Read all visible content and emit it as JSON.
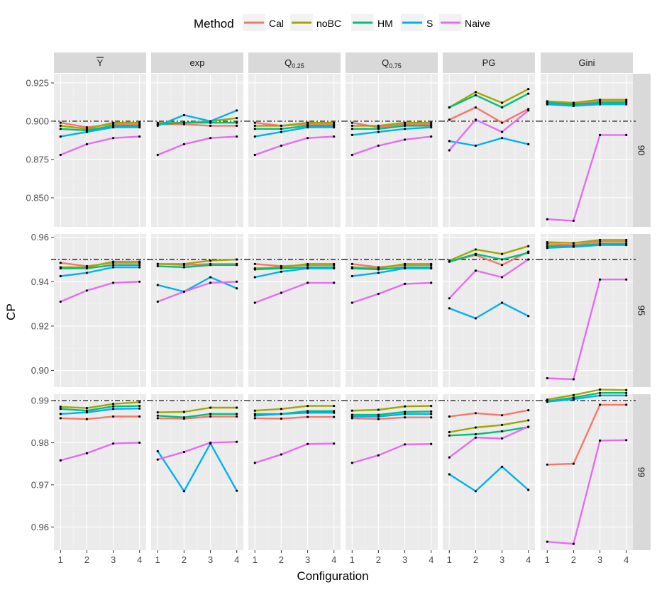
{
  "chart_data": {
    "type": "line",
    "xlabel": "Configuration",
    "ylabel": "CP",
    "x": [
      1,
      2,
      3,
      4
    ],
    "legend": {
      "title": "Method",
      "position": "top",
      "entries": [
        {
          "name": "Cal",
          "color": "#F8766D"
        },
        {
          "name": "noBC",
          "color": "#A3A500"
        },
        {
          "name": "HM",
          "color": "#00BF7D"
        },
        {
          "name": "S",
          "color": "#00B0F6"
        },
        {
          "name": "Naive",
          "color": "#E76BF3"
        }
      ]
    },
    "columns": [
      {
        "label": "Y",
        "overline": true
      },
      {
        "label": "exp"
      },
      {
        "label": "Q",
        "sub": "0.25"
      },
      {
        "label": "Q",
        "sub": "0.75"
      },
      {
        "label": "PG"
      },
      {
        "label": "Gini"
      }
    ],
    "rows": [
      {
        "label": "90",
        "nominal": 0.9,
        "ylim": [
          0.831,
          0.931
        ],
        "yticks": [
          0.85,
          0.875,
          0.9,
          0.925
        ],
        "ytick_labels": [
          "0.850",
          "0.875",
          "0.900",
          "0.925"
        ],
        "panels": [
          {
            "Cal": [
              0.899,
              0.896,
              0.898,
              0.898
            ],
            "noBC": [
              0.897,
              0.895,
              0.899,
              0.899
            ],
            "HM": [
              0.895,
              0.894,
              0.897,
              0.897
            ],
            "S": [
              0.89,
              0.893,
              0.896,
              0.896
            ],
            "Naive": [
              0.878,
              0.885,
              0.889,
              0.89
            ]
          },
          {
            "Cal": [
              0.898,
              0.898,
              0.897,
              0.897
            ],
            "noBC": [
              0.899,
              0.899,
              0.9,
              0.902
            ],
            "HM": [
              0.898,
              0.899,
              0.899,
              0.899
            ],
            "S": [
              0.897,
              0.904,
              0.9,
              0.907
            ],
            "Naive": [
              0.878,
              0.885,
              0.889,
              0.89
            ]
          },
          {
            "Cal": [
              0.899,
              0.897,
              0.898,
              0.898
            ],
            "noBC": [
              0.897,
              0.897,
              0.899,
              0.899
            ],
            "HM": [
              0.895,
              0.895,
              0.897,
              0.897
            ],
            "S": [
              0.89,
              0.893,
              0.896,
              0.896
            ],
            "Naive": [
              0.878,
              0.884,
              0.889,
              0.89
            ]
          },
          {
            "Cal": [
              0.899,
              0.896,
              0.898,
              0.898
            ],
            "noBC": [
              0.897,
              0.897,
              0.899,
              0.899
            ],
            "HM": [
              0.895,
              0.895,
              0.897,
              0.897
            ],
            "S": [
              0.891,
              0.893,
              0.895,
              0.896
            ],
            "Naive": [
              0.878,
              0.884,
              0.888,
              0.89
            ]
          },
          {
            "Cal": [
              0.901,
              0.909,
              0.899,
              0.908
            ],
            "noBC": [
              0.909,
              0.919,
              0.912,
              0.921
            ],
            "HM": [
              0.909,
              0.917,
              0.909,
              0.918
            ],
            "S": [
              0.887,
              0.884,
              0.889,
              0.885
            ],
            "Naive": [
              0.881,
              0.901,
              0.893,
              0.907
            ]
          },
          {
            "Cal": [
              0.912,
              0.911,
              0.913,
              0.913
            ],
            "noBC": [
              0.913,
              0.912,
              0.914,
              0.914
            ],
            "HM": [
              0.912,
              0.911,
              0.912,
              0.912
            ],
            "S": [
              0.911,
              0.91,
              0.911,
              0.911
            ],
            "Naive": [
              0.836,
              0.835,
              0.891,
              0.891
            ]
          }
        ]
      },
      {
        "label": "95",
        "nominal": 0.95,
        "ylim": [
          0.8925,
          0.9615
        ],
        "yticks": [
          0.9,
          0.92,
          0.94,
          0.96
        ],
        "ytick_labels": [
          "0.90",
          "0.92",
          "0.94",
          "0.96"
        ],
        "panels": [
          {
            "Cal": [
              0.9485,
              0.947,
              0.9485,
              0.9485
            ],
            "noBC": [
              0.9465,
              0.9465,
              0.949,
              0.949
            ],
            "HM": [
              0.946,
              0.946,
              0.9475,
              0.9475
            ],
            "S": [
              0.9425,
              0.944,
              0.9465,
              0.9465
            ],
            "Naive": [
              0.931,
              0.936,
              0.9395,
              0.94
            ]
          },
          {
            "Cal": [
              0.948,
              0.9475,
              0.948,
              0.948
            ],
            "noBC": [
              0.948,
              0.948,
              0.9495,
              0.95
            ],
            "HM": [
              0.947,
              0.9465,
              0.9475,
              0.9475
            ],
            "S": [
              0.9385,
              0.9355,
              0.942,
              0.937
            ],
            "Naive": [
              0.931,
              0.9355,
              0.9395,
              0.94
            ]
          },
          {
            "Cal": [
              0.948,
              0.947,
              0.9475,
              0.9475
            ],
            "noBC": [
              0.946,
              0.9465,
              0.948,
              0.948
            ],
            "HM": [
              0.9455,
              0.946,
              0.9465,
              0.9465
            ],
            "S": [
              0.942,
              0.9445,
              0.946,
              0.946
            ],
            "Naive": [
              0.9305,
              0.935,
              0.9395,
              0.9395
            ]
          },
          {
            "Cal": [
              0.948,
              0.9465,
              0.9475,
              0.9475
            ],
            "noBC": [
              0.9465,
              0.946,
              0.948,
              0.948
            ],
            "HM": [
              0.946,
              0.9455,
              0.9465,
              0.9465
            ],
            "S": [
              0.9425,
              0.944,
              0.946,
              0.946
            ],
            "Naive": [
              0.9305,
              0.9345,
              0.939,
              0.9395
            ]
          },
          {
            "Cal": [
              0.949,
              0.952,
              0.9475,
              0.9535
            ],
            "noBC": [
              0.9495,
              0.9545,
              0.9525,
              0.956
            ],
            "HM": [
              0.949,
              0.9525,
              0.95,
              0.953
            ],
            "S": [
              0.928,
              0.9235,
              0.9305,
              0.9245
            ],
            "Naive": [
              0.9325,
              0.945,
              0.942,
              0.95
            ]
          },
          {
            "Cal": [
              0.957,
              0.9565,
              0.958,
              0.958
            ],
            "noBC": [
              0.9578,
              0.9574,
              0.9588,
              0.9588
            ],
            "HM": [
              0.956,
              0.956,
              0.957,
              0.957
            ],
            "S": [
              0.9552,
              0.9557,
              0.9565,
              0.9565
            ],
            "Naive": [
              0.8965,
              0.896,
              0.941,
              0.941
            ]
          }
        ]
      },
      {
        "label": "99",
        "nominal": 0.99,
        "ylim": [
          0.9545,
          0.9915
        ],
        "yticks": [
          0.96,
          0.97,
          0.98,
          0.99
        ],
        "ytick_labels": [
          "0.96",
          "0.97",
          "0.98",
          "0.99"
        ],
        "panels": [
          {
            "Cal": [
              0.9858,
              0.9856,
              0.9862,
              0.9862
            ],
            "noBC": [
              0.9885,
              0.9882,
              0.9892,
              0.9896
            ],
            "HM": [
              0.988,
              0.9876,
              0.9886,
              0.9887
            ],
            "S": [
              0.9868,
              0.9872,
              0.988,
              0.9881
            ],
            "Naive": [
              0.9758,
              0.9775,
              0.9798,
              0.98
            ]
          },
          {
            "Cal": [
              0.9858,
              0.9857,
              0.9862,
              0.9862
            ],
            "noBC": [
              0.9872,
              0.9873,
              0.9883,
              0.9883
            ],
            "HM": [
              0.9864,
              0.986,
              0.9868,
              0.9868
            ],
            "S": [
              0.978,
              0.9685,
              0.9798,
              0.9686
            ],
            "Naive": [
              0.976,
              0.9778,
              0.98,
              0.9802
            ]
          },
          {
            "Cal": [
              0.9858,
              0.9857,
              0.9861,
              0.9861
            ],
            "noBC": [
              0.9876,
              0.988,
              0.9887,
              0.9887
            ],
            "HM": [
              0.9868,
              0.9868,
              0.9875,
              0.9875
            ],
            "S": [
              0.9864,
              0.9868,
              0.9871,
              0.9871
            ],
            "Naive": [
              0.9752,
              0.9772,
              0.9797,
              0.9798
            ]
          },
          {
            "Cal": [
              0.9858,
              0.9856,
              0.986,
              0.986
            ],
            "noBC": [
              0.9876,
              0.9878,
              0.9886,
              0.9887
            ],
            "HM": [
              0.9866,
              0.9866,
              0.9873,
              0.9874
            ],
            "S": [
              0.9862,
              0.9862,
              0.9868,
              0.9868
            ],
            "Naive": [
              0.9752,
              0.977,
              0.9796,
              0.9797
            ]
          },
          {
            "Cal": [
              0.9862,
              0.987,
              0.9865,
              0.9877
            ],
            "noBC": [
              0.9825,
              0.9836,
              0.9842,
              0.9853
            ],
            "HM": [
              0.9817,
              0.982,
              0.9827,
              0.9837
            ],
            "S": [
              0.9725,
              0.9685,
              0.9743,
              0.9688
            ],
            "Naive": [
              0.9765,
              0.9812,
              0.981,
              0.9838
            ]
          },
          {
            "Cal": [
              0.9748,
              0.975,
              0.989,
              0.989
            ],
            "noBC": [
              0.9902,
              0.9913,
              0.9926,
              0.9925
            ],
            "HM": [
              0.9898,
              0.9907,
              0.9918,
              0.9918
            ],
            "S": [
              0.9897,
              0.9903,
              0.9912,
              0.9912
            ],
            "Naive": [
              0.9565,
              0.956,
              0.9805,
              0.9806
            ]
          }
        ]
      }
    ]
  }
}
